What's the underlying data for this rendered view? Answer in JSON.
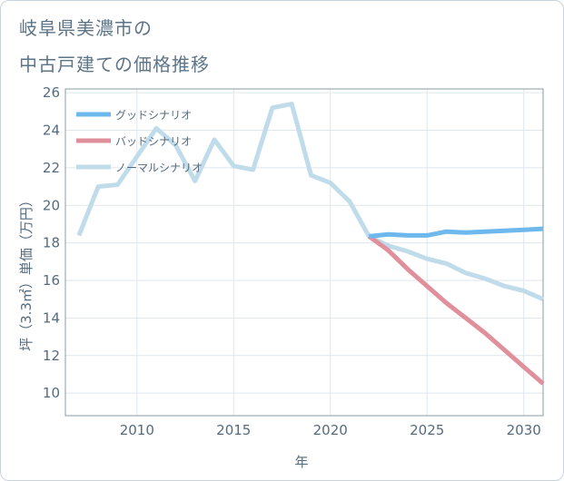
{
  "chart_title_line1": "岐阜県美濃市の",
  "chart_title_line2": "中古戸建ての価格推移",
  "chart_data": {
    "type": "line",
    "title": "岐阜県美濃市の 中古戸建ての価格推移",
    "xlabel": "年",
    "ylabel": "坪（3.3㎡）単価（万円）",
    "xlim": [
      2006.3,
      2031
    ],
    "ylim": [
      8.8,
      26.2
    ],
    "x_ticks": [
      2010,
      2015,
      2020,
      2025,
      2030
    ],
    "y_ticks": [
      10,
      12,
      14,
      16,
      18,
      20,
      22,
      24,
      26
    ],
    "legend_position": "top-left",
    "series": [
      {
        "name": "グッドシナリオ",
        "color": "#6db8ec",
        "x": [
          2022,
          2023,
          2024,
          2025,
          2026,
          2027,
          2028,
          2029,
          2030,
          2031
        ],
        "values": [
          18.35,
          18.45,
          18.4,
          18.4,
          18.6,
          18.55,
          18.6,
          18.65,
          18.7,
          18.75
        ]
      },
      {
        "name": "バッドシナリオ",
        "color": "#e0909a",
        "x": [
          2022,
          2023,
          2024,
          2025,
          2026,
          2027,
          2028,
          2029,
          2030,
          2031
        ],
        "values": [
          18.35,
          17.6,
          16.6,
          15.7,
          14.8,
          14.0,
          13.2,
          12.3,
          11.4,
          10.5
        ]
      },
      {
        "name": "ノーマルシナリオ",
        "color": "#c0dcea",
        "x": [
          2007,
          2008,
          2009,
          2010,
          2011,
          2012,
          2013,
          2014,
          2015,
          2016,
          2017,
          2018,
          2019,
          2020,
          2021,
          2022,
          2023,
          2024,
          2025,
          2026,
          2027,
          2028,
          2029,
          2030,
          2031
        ],
        "values": [
          18.4,
          21.0,
          21.1,
          22.6,
          24.1,
          23.2,
          21.3,
          23.5,
          22.1,
          21.9,
          25.2,
          25.4,
          21.6,
          21.2,
          20.2,
          18.35,
          17.85,
          17.55,
          17.15,
          16.9,
          16.4,
          16.1,
          15.7,
          15.45,
          15.0
        ]
      }
    ]
  }
}
